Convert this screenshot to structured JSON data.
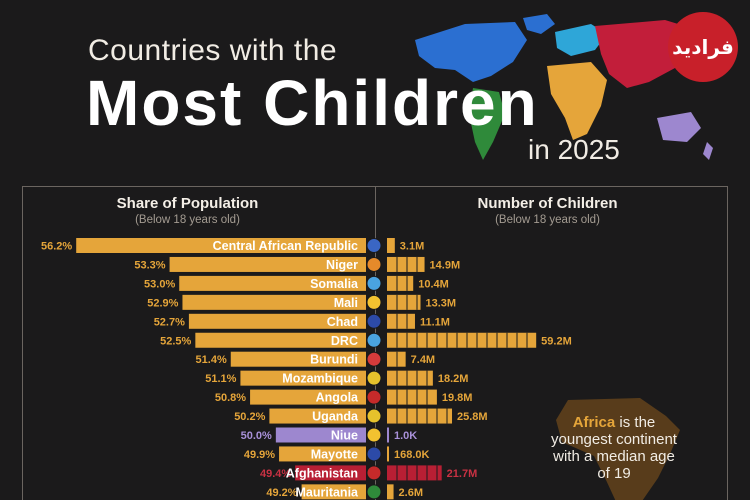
{
  "header": {
    "title_line1": "Countries with the",
    "title_line2": "Most Children",
    "title_line3": "in 2025",
    "logo_text": "فرادید"
  },
  "panels": {
    "left_title": "Share of Population",
    "left_subtitle": "(Below 18 years old)",
    "right_title": "Number of Children",
    "right_subtitle": "(Below 18 years old)"
  },
  "callout": {
    "highlight": "Africa",
    "text": " is the youngest continent with a median age of 19"
  },
  "colors": {
    "background": "#1b1a1b",
    "africa_bar": "#e5a53a",
    "oceania_bar": "#9d87cf",
    "asia_bar": "#b81f34",
    "label_africa": "#e5a53a",
    "label_oceania": "#a991d9",
    "label_asia": "#c93143"
  },
  "chart_data": {
    "type": "bar",
    "title": "Countries with the Most Children in 2025",
    "categories": [
      "Central African Republic",
      "Niger",
      "Somalia",
      "Mali",
      "Chad",
      "DRC",
      "Burundi",
      "Mozambique",
      "Angola",
      "Uganda",
      "Niue",
      "Mayotte",
      "Afghanistan",
      "Mauritania"
    ],
    "region": [
      "africa",
      "africa",
      "africa",
      "africa",
      "africa",
      "africa",
      "africa",
      "africa",
      "africa",
      "africa",
      "oceania",
      "africa",
      "asia",
      "africa"
    ],
    "flag_colors": [
      "#3a66c4",
      "#e58a2a",
      "#4aa3e0",
      "#f2c230",
      "#2c4aa8",
      "#4aa3e0",
      "#d63b3b",
      "#e6c22c",
      "#c62a2a",
      "#e6c22c",
      "#f2c230",
      "#2c4aa8",
      "#c62a2a",
      "#2f8a3a"
    ],
    "series": [
      {
        "name": "Share of Population",
        "values": [
          56.2,
          53.3,
          53.0,
          52.9,
          52.7,
          52.5,
          51.4,
          51.1,
          50.8,
          50.2,
          50.0,
          49.9,
          49.4,
          49.2
        ],
        "labels": [
          "56.2%",
          "53.3%",
          "53.0%",
          "52.9%",
          "52.7%",
          "52.5%",
          "51.4%",
          "51.1%",
          "50.8%",
          "50.2%",
          "50.0%",
          "49.9%",
          "49.4%",
          "49.2%"
        ]
      },
      {
        "name": "Number of Children",
        "values": [
          3.1,
          14.9,
          10.4,
          13.3,
          11.1,
          59.2,
          7.4,
          18.2,
          19.8,
          25.8,
          0.001,
          0.168,
          21.7,
          2.6
        ],
        "labels": [
          "3.1M",
          "14.9M",
          "10.4M",
          "13.3M",
          "11.1M",
          "59.2M",
          "7.4M",
          "18.2M",
          "19.8M",
          "25.8M",
          "1.0K",
          "168.0K",
          "21.7M",
          "2.6M"
        ]
      }
    ]
  }
}
